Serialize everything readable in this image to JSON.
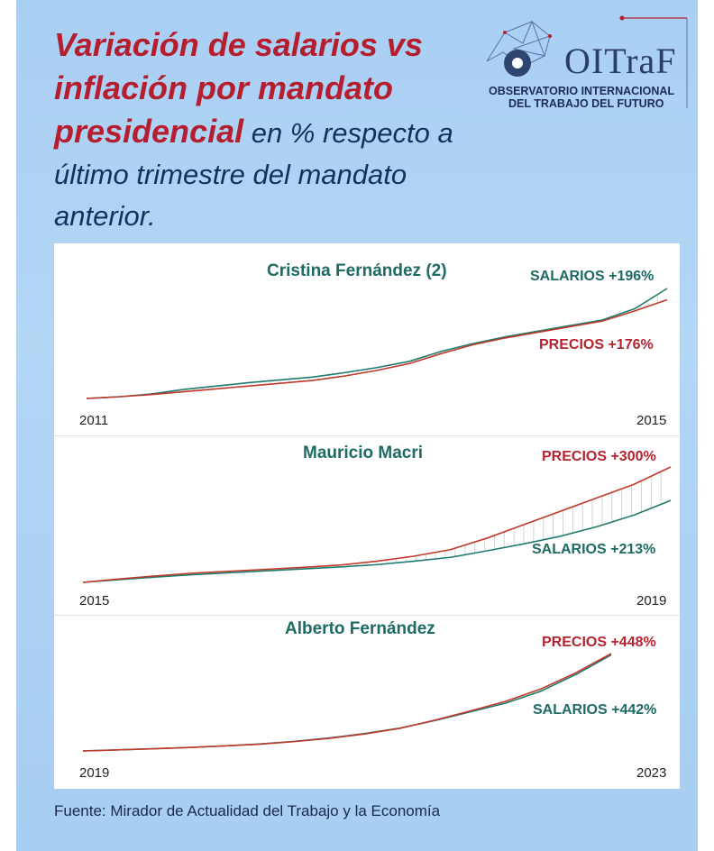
{
  "title": {
    "bold": "Variación de salarios vs inflación por mandato presidencial",
    "light": " en % respecto a último trimestre del mandato anterior."
  },
  "logo": {
    "word": "OITraF",
    "line1": "OBSERVATORIO INTERNACIONAL",
    "line2": "DEL TRABAJO DEL FUTURO"
  },
  "colors": {
    "salarios": "#1f7a6e",
    "precios": "#c0392b",
    "title": "#b51e2e"
  },
  "chart_data": [
    {
      "type": "line",
      "title": "Cristina Fernández (2)",
      "x_start": "2011",
      "x_end": "2015",
      "salarios_label": "SALARIOS +196%",
      "precios_label": "PRECIOS +176%",
      "series": [
        {
          "name": "SALARIOS",
          "values": [
            0,
            3,
            8,
            16,
            22,
            28,
            33,
            38,
            46,
            55,
            66,
            84,
            98,
            110,
            120,
            130,
            140,
            160,
            196
          ]
        },
        {
          "name": "PRECIOS",
          "values": [
            0,
            3,
            7,
            12,
            17,
            22,
            27,
            32,
            40,
            50,
            62,
            80,
            96,
            108,
            118,
            128,
            138,
            156,
            176
          ]
        }
      ]
    },
    {
      "type": "line",
      "title": "Mauricio Macri",
      "x_start": "2015",
      "x_end": "2019",
      "salarios_label": "SALARIOS +213%",
      "precios_label": "PRECIOS +300%",
      "series": [
        {
          "name": "SALARIOS",
          "values": [
            0,
            7,
            14,
            20,
            25,
            30,
            35,
            40,
            46,
            55,
            65,
            82,
            100,
            120,
            145,
            175,
            213
          ]
        },
        {
          "name": "PRECIOS",
          "values": [
            0,
            9,
            17,
            24,
            29,
            34,
            39,
            45,
            55,
            68,
            85,
            115,
            150,
            185,
            220,
            255,
            300
          ]
        }
      ]
    },
    {
      "type": "line",
      "title": "Alberto Fernández",
      "x_start": "2019",
      "x_end": "2023",
      "salarios_label": "SALARIOS +442%",
      "precios_label": "PRECIOS +448%",
      "series": [
        {
          "name": "SALARIOS",
          "values": [
            0,
            5,
            10,
            16,
            23,
            32,
            44,
            60,
            80,
            105,
            140,
            180,
            220,
            275,
            352,
            442
          ]
        },
        {
          "name": "PRECIOS",
          "values": [
            0,
            5,
            10,
            16,
            23,
            31,
            43,
            58,
            78,
            104,
            142,
            184,
            228,
            285,
            360,
            448
          ]
        }
      ]
    }
  ],
  "source": "Fuente: Mirador de Actualidad del Trabajo y la Economía"
}
